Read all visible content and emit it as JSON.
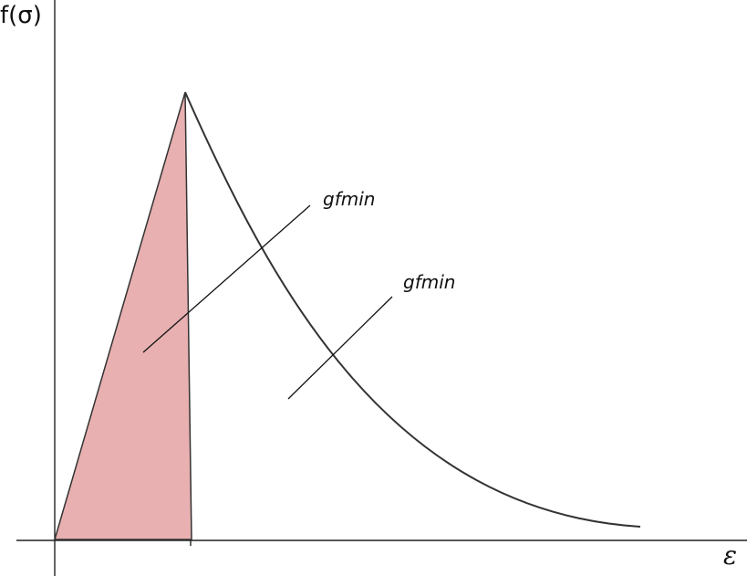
{
  "diagram": {
    "y_axis_label": "f(σ)",
    "x_axis_label": "ε",
    "annotations": [
      {
        "text": "gfmin"
      },
      {
        "text": "gfmin"
      }
    ],
    "colors": {
      "shaded_region": "#e8b0b0",
      "lines": "#333333",
      "background": "#ffffff"
    }
  }
}
